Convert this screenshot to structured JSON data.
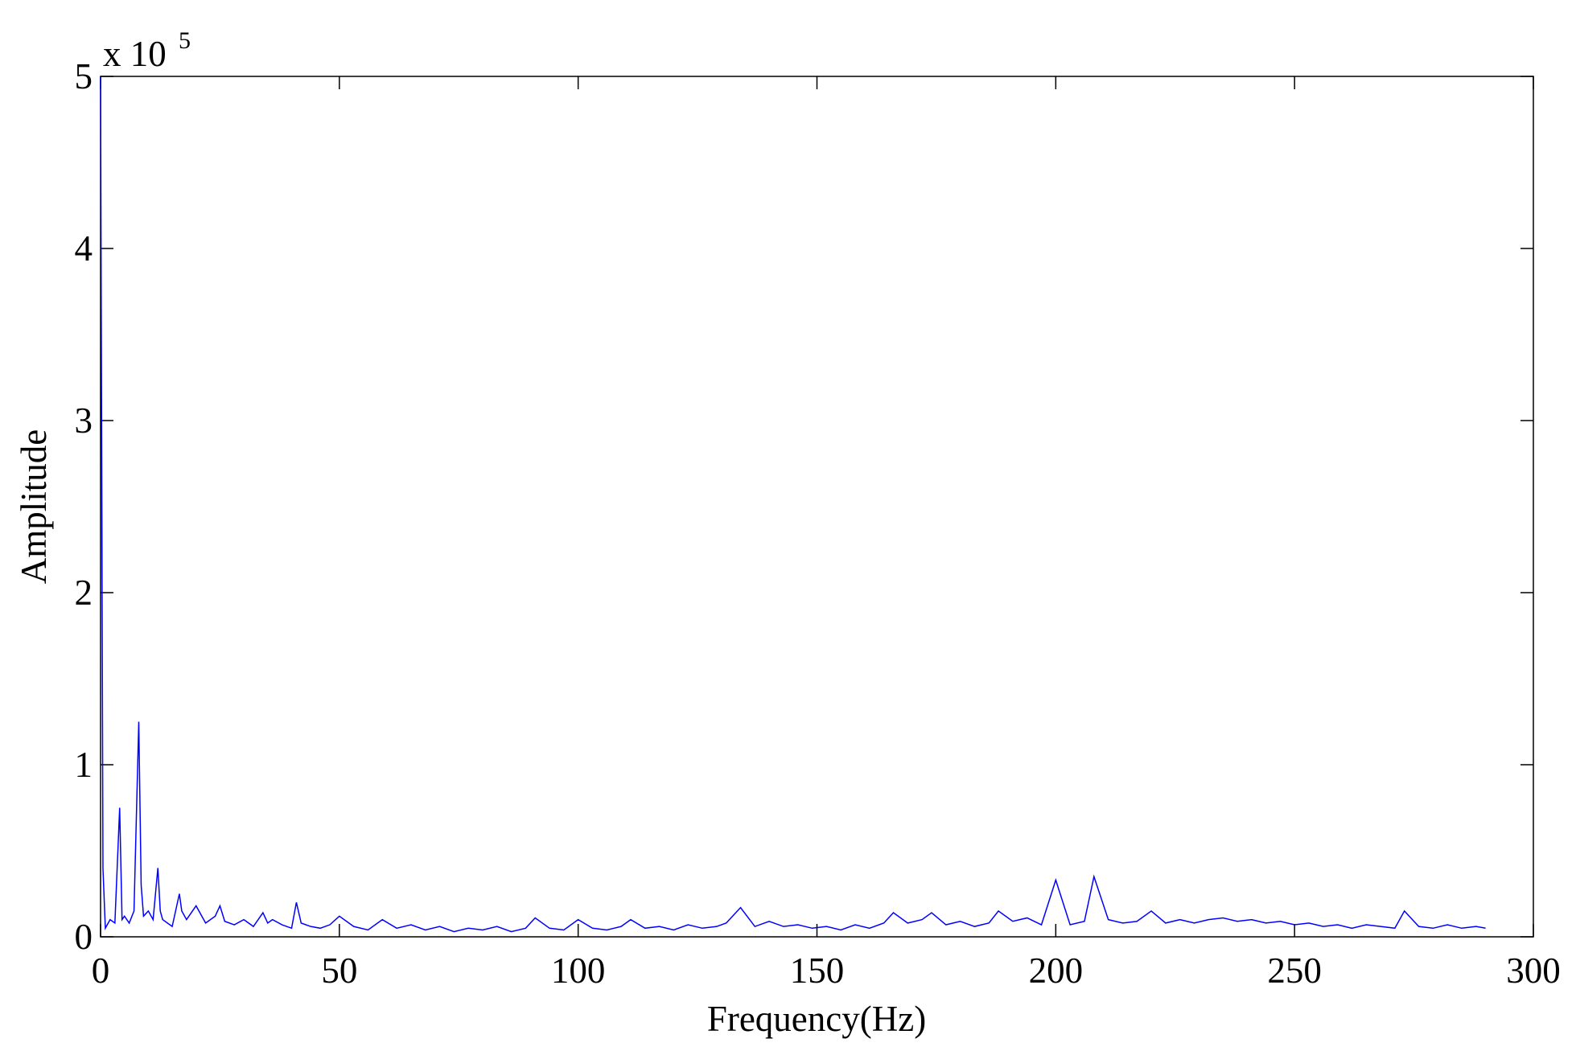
{
  "chart_data": {
    "type": "line",
    "x_label": "Frequency(Hz)",
    "y_label": "Amplitude",
    "y_multiplier": "x 10",
    "y_multiplier_exponent": "5",
    "x": [
      0,
      0.5,
      1,
      2,
      3,
      4,
      4.5,
      5,
      6,
      7,
      8,
      8.5,
      9,
      10,
      11,
      12,
      12.5,
      13,
      14,
      15,
      16.5,
      17,
      18,
      20,
      22,
      24,
      25,
      26,
      28,
      30,
      32,
      34,
      35,
      36,
      38,
      40,
      41,
      42,
      44,
      46,
      48,
      50,
      53,
      56,
      59,
      62,
      65,
      68,
      71,
      74,
      77,
      80,
      83,
      86,
      89,
      91,
      94,
      97,
      100,
      103,
      106,
      109,
      111,
      114,
      117,
      120,
      123,
      126,
      129,
      131,
      134,
      137,
      140,
      143,
      146,
      149,
      152,
      155,
      158,
      161,
      164,
      166,
      169,
      172,
      174,
      177,
      180,
      183,
      186,
      188,
      191,
      194,
      197,
      200,
      203,
      206,
      208,
      211,
      214,
      217,
      220,
      223,
      226,
      229,
      232,
      235,
      238,
      241,
      244,
      247,
      250,
      253,
      256,
      259,
      262,
      265,
      268,
      271,
      273,
      276,
      279,
      282,
      285,
      288,
      290
    ],
    "series": [
      {
        "color": "#0000ff",
        "values": [
          5,
          0.4,
          0.05,
          0.1,
          0.08,
          0.75,
          0.1,
          0.12,
          0.08,
          0.15,
          1.25,
          0.3,
          0.12,
          0.15,
          0.1,
          0.4,
          0.15,
          0.1,
          0.08,
          0.06,
          0.25,
          0.15,
          0.1,
          0.18,
          0.08,
          0.12,
          0.18,
          0.09,
          0.07,
          0.1,
          0.06,
          0.14,
          0.08,
          0.1,
          0.07,
          0.05,
          0.2,
          0.08,
          0.06,
          0.05,
          0.07,
          0.12,
          0.06,
          0.04,
          0.1,
          0.05,
          0.07,
          0.04,
          0.06,
          0.03,
          0.05,
          0.04,
          0.06,
          0.03,
          0.05,
          0.11,
          0.05,
          0.04,
          0.1,
          0.05,
          0.04,
          0.06,
          0.1,
          0.05,
          0.06,
          0.04,
          0.07,
          0.05,
          0.06,
          0.08,
          0.17,
          0.06,
          0.09,
          0.06,
          0.07,
          0.05,
          0.06,
          0.04,
          0.07,
          0.05,
          0.08,
          0.14,
          0.08,
          0.1,
          0.14,
          0.07,
          0.09,
          0.06,
          0.08,
          0.15,
          0.09,
          0.11,
          0.07,
          0.33,
          0.07,
          0.09,
          0.35,
          0.1,
          0.08,
          0.09,
          0.15,
          0.08,
          0.1,
          0.08,
          0.1,
          0.11,
          0.09,
          0.1,
          0.08,
          0.09,
          0.07,
          0.08,
          0.06,
          0.07,
          0.05,
          0.07,
          0.06,
          0.05,
          0.15,
          0.06,
          0.05,
          0.07,
          0.05,
          0.06,
          0.05
        ]
      }
    ],
    "xlim": [
      0,
      300
    ],
    "xticks": [
      0,
      50,
      100,
      150,
      200,
      250,
      300
    ],
    "ylim": [
      0,
      5
    ],
    "yticks": [
      0,
      1,
      2,
      3,
      4,
      5
    ]
  }
}
